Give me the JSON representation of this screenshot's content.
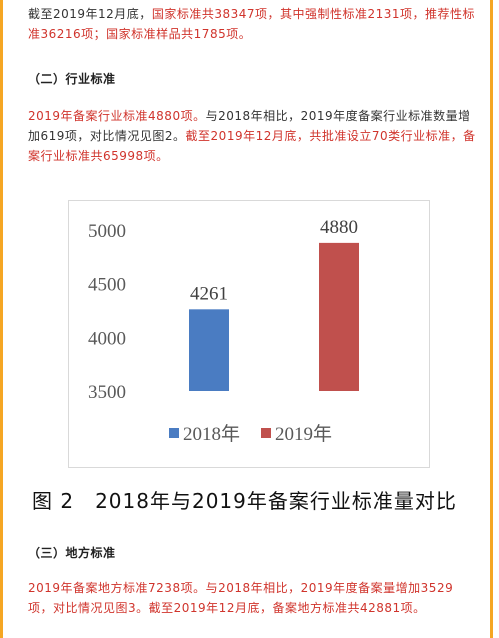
{
  "para1": {
    "t1": "截至2019年12月底，",
    "t2": "国家标准共38347项，其中强制性标准2131项，推荐性标准36216项；国家标准样品共1785项。"
  },
  "heading2": "（二）行业标准",
  "para2": {
    "t1": "2019年备案行业标准4880项。",
    "t2": "与2018年相比，2019年度备案行业标准数量增加619项，对比情况见图2。",
    "t3": "截至2019年12月底，共批准设立70类行业标准，备案行业标准共65998项。"
  },
  "chart_data": {
    "type": "bar",
    "categories": [
      "2018年",
      "2019年"
    ],
    "values": [
      4261,
      4880
    ],
    "colors": [
      "#4a7cc2",
      "#c0504d"
    ],
    "ylim": [
      3500,
      5000
    ],
    "yticks": [
      3500,
      4000,
      4500,
      5000
    ],
    "legend": [
      {
        "name": "2018年",
        "color": "#4a7cc2"
      },
      {
        "name": "2019年",
        "color": "#c0504d"
      }
    ],
    "legend_position": "bottom",
    "grid": false
  },
  "caption": "图 2　2018年与2019年备案行业标准量对比",
  "heading3": "（三）地方标准",
  "para3": {
    "t1": "2019年备案地方标准7238项。",
    "t2": "与2018年相比，2019年度备案量增加3529项，对比情况见图3。",
    "t3": "截至2019年12月底，备案地方标准共42881项。"
  }
}
